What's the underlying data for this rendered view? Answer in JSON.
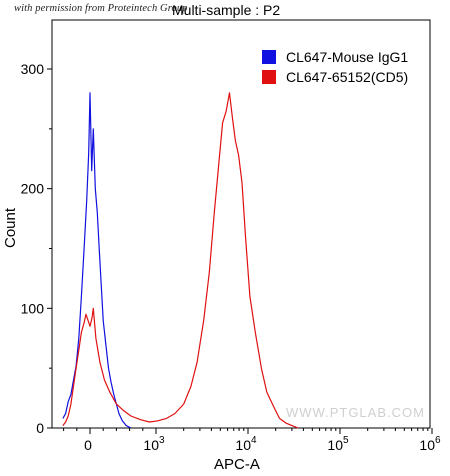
{
  "watermark_text": "with permission from Proteintech Group",
  "site_watermark": "WWW.PTGLAB.COM",
  "chart_data": {
    "type": "area",
    "title": "Multi-sample : P2",
    "xlabel": "APC-A",
    "ylabel": "Count",
    "ylim": [
      0,
      330
    ],
    "y_ticks": [
      "0",
      "100",
      "200",
      "300"
    ],
    "x_ticks": [
      {
        "base": "0",
        "exp": ""
      },
      {
        "base": "10",
        "exp": "3"
      },
      {
        "base": "10",
        "exp": "4"
      },
      {
        "base": "10",
        "exp": "5"
      },
      {
        "base": "10",
        "exp": "6"
      }
    ],
    "legend_position": "top-right",
    "grid": false,
    "series": [
      {
        "name": "CL647-Mouse IgG1",
        "color": "#1010e0",
        "points": [
          [
            -410,
            8
          ],
          [
            -370,
            12
          ],
          [
            -330,
            22
          ],
          [
            -290,
            28
          ],
          [
            -250,
            40
          ],
          [
            -210,
            52
          ],
          [
            -170,
            75
          ],
          [
            -130,
            110
          ],
          [
            -90,
            150
          ],
          [
            -50,
            190
          ],
          [
            -20,
            230
          ],
          [
            0,
            280
          ],
          [
            25,
            215
          ],
          [
            50,
            250
          ],
          [
            80,
            200
          ],
          [
            110,
            180
          ],
          [
            140,
            150
          ],
          [
            170,
            120
          ],
          [
            200,
            90
          ],
          [
            240,
            70
          ],
          [
            280,
            50
          ],
          [
            320,
            38
          ],
          [
            360,
            28
          ],
          [
            400,
            20
          ],
          [
            440,
            12
          ],
          [
            490,
            6
          ],
          [
            550,
            2
          ],
          [
            620,
            0
          ]
        ]
      },
      {
        "name": "CL647-65152(CD5)",
        "color": "#e01010",
        "points": [
          [
            -410,
            2
          ],
          [
            -370,
            5
          ],
          [
            -330,
            10
          ],
          [
            -290,
            20
          ],
          [
            -250,
            35
          ],
          [
            -210,
            50
          ],
          [
            -170,
            65
          ],
          [
            -130,
            80
          ],
          [
            -90,
            88
          ],
          [
            -60,
            95
          ],
          [
            -30,
            90
          ],
          [
            0,
            85
          ],
          [
            30,
            92
          ],
          [
            50,
            100
          ],
          [
            90,
            75
          ],
          [
            150,
            55
          ],
          [
            220,
            40
          ],
          [
            300,
            30
          ],
          [
            400,
            20
          ],
          [
            500,
            15
          ],
          [
            620,
            10
          ],
          [
            760,
            7
          ],
          [
            900,
            5
          ],
          [
            1050,
            6
          ],
          [
            1300,
            8
          ],
          [
            1600,
            12
          ],
          [
            2000,
            20
          ],
          [
            2400,
            35
          ],
          [
            2800,
            55
          ],
          [
            3300,
            90
          ],
          [
            3800,
            130
          ],
          [
            4300,
            180
          ],
          [
            4800,
            220
          ],
          [
            5300,
            255
          ],
          [
            5800,
            265
          ],
          [
            6300,
            280
          ],
          [
            6800,
            258
          ],
          [
            7300,
            240
          ],
          [
            7900,
            228
          ],
          [
            8600,
            205
          ],
          [
            9400,
            160
          ],
          [
            10500,
            110
          ],
          [
            12000,
            80
          ],
          [
            14000,
            50
          ],
          [
            16000,
            30
          ],
          [
            19000,
            18
          ],
          [
            22000,
            8
          ],
          [
            26000,
            4
          ],
          [
            30000,
            2
          ],
          [
            35000,
            0
          ]
        ]
      }
    ]
  }
}
